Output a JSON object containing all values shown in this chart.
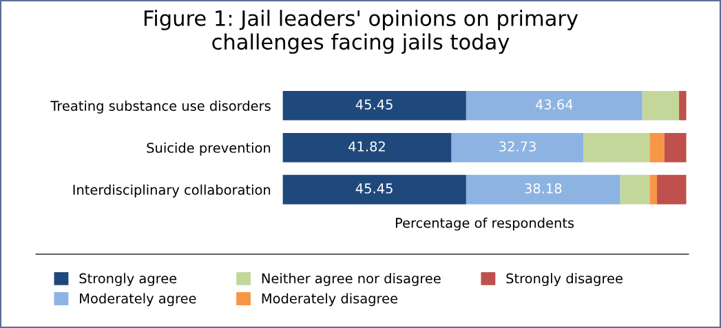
{
  "chart_data": {
    "type": "bar",
    "orientation": "horizontal",
    "stacked": true,
    "title": "Figure 1: Jail leaders' opinions on primary\nchallenges facing jails today",
    "xlabel": "Percentage of respondents",
    "categories": [
      "Treating substance use disorders",
      "Suicide prevention",
      "Interdisciplinary collaboration"
    ],
    "series": [
      {
        "name": "Strongly agree",
        "color": "#1f497d",
        "values": [
          45.45,
          41.82,
          45.45
        ],
        "value_labels": [
          "45.45",
          "41.82",
          "45.45"
        ]
      },
      {
        "name": "Moderately agree",
        "color": "#8db3e2",
        "values": [
          43.64,
          32.73,
          38.18
        ],
        "value_labels": [
          "43.64",
          "32.73",
          "38.18"
        ]
      },
      {
        "name": "Neither agree nor disagree",
        "color": "#c4d79b",
        "values": [
          9.09,
          16.36,
          7.27
        ]
      },
      {
        "name": "Moderately disagree",
        "color": "#f79646",
        "values": [
          0,
          3.64,
          1.82
        ]
      },
      {
        "name": "Strongly disagree",
        "color": "#c0504d",
        "values": [
          1.82,
          5.45,
          7.27
        ]
      }
    ],
    "xlim": [
      0,
      100
    ],
    "tick_labels": false,
    "grid": false,
    "legend": "bottom"
  }
}
